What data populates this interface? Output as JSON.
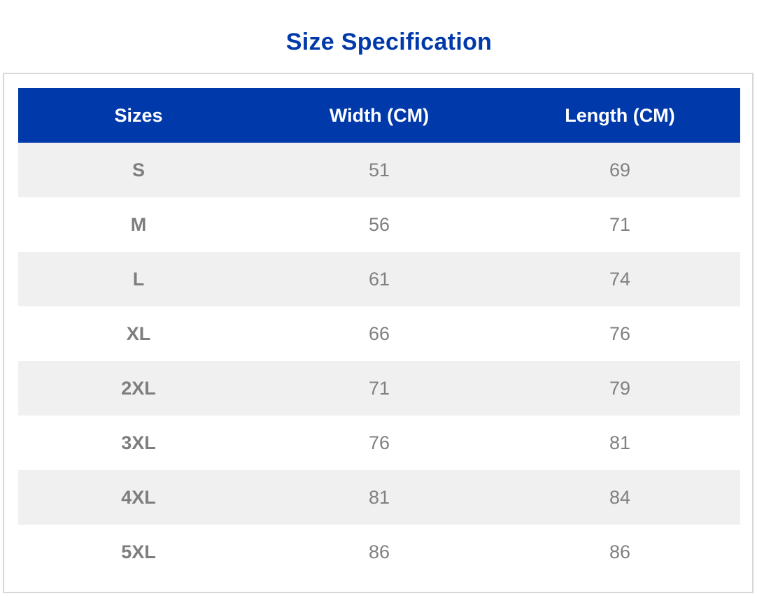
{
  "title": "Size Specification",
  "colors": {
    "accent": "#0039aa",
    "row_shade": "#f0f0f0",
    "text_gray": "#808080",
    "border": "#d6d6d6"
  },
  "table": {
    "headers": [
      "Sizes",
      "Width (CM)",
      "Length (CM)"
    ],
    "rows": [
      [
        "S",
        "51",
        "69"
      ],
      [
        "M",
        "56",
        "71"
      ],
      [
        "L",
        "61",
        "74"
      ],
      [
        "XL",
        "66",
        "76"
      ],
      [
        "2XL",
        "71",
        "79"
      ],
      [
        "3XL",
        "76",
        "81"
      ],
      [
        "4XL",
        "81",
        "84"
      ],
      [
        "5XL",
        "86",
        "86"
      ]
    ]
  }
}
